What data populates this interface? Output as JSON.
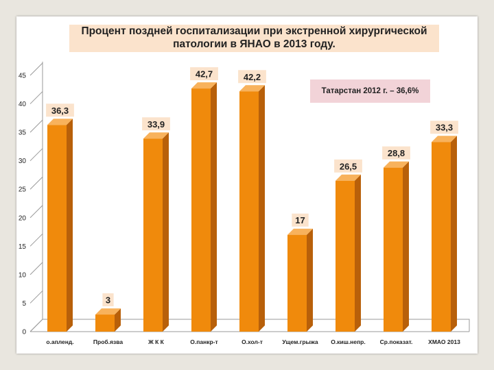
{
  "chart_data": {
    "type": "bar",
    "title_line1": "Процент поздней госпитализации при экстренной хирургической",
    "title_line2": "патологии в ЯНАО в 2013 году.",
    "annotation": "Татарстан 2012 г. – 36,6%",
    "categories": [
      "о.апленд.",
      "Проб.язва",
      "Ж К К",
      "О.панкр-т",
      "О.хол-т",
      "Ущем.грыжа",
      "О.киш.непр.",
      "Ср.показат.",
      "ХМАО 2013"
    ],
    "values": [
      36.3,
      3,
      33.9,
      42.7,
      42.2,
      17,
      26.5,
      28.8,
      33.3
    ],
    "value_labels": [
      "36,3",
      "3",
      "33,9",
      "42,7",
      "42,2",
      "17",
      "26,5",
      "28,8",
      "33,3"
    ],
    "ylim": [
      0,
      45
    ],
    "yticks": [
      0,
      5,
      10,
      15,
      20,
      25,
      30,
      35,
      40,
      45
    ],
    "grid": false,
    "colors": {
      "bar_front": "#f08a0c",
      "bar_side": "#b8600a",
      "bar_top": "#f8b25c",
      "axis": "#999999"
    }
  }
}
